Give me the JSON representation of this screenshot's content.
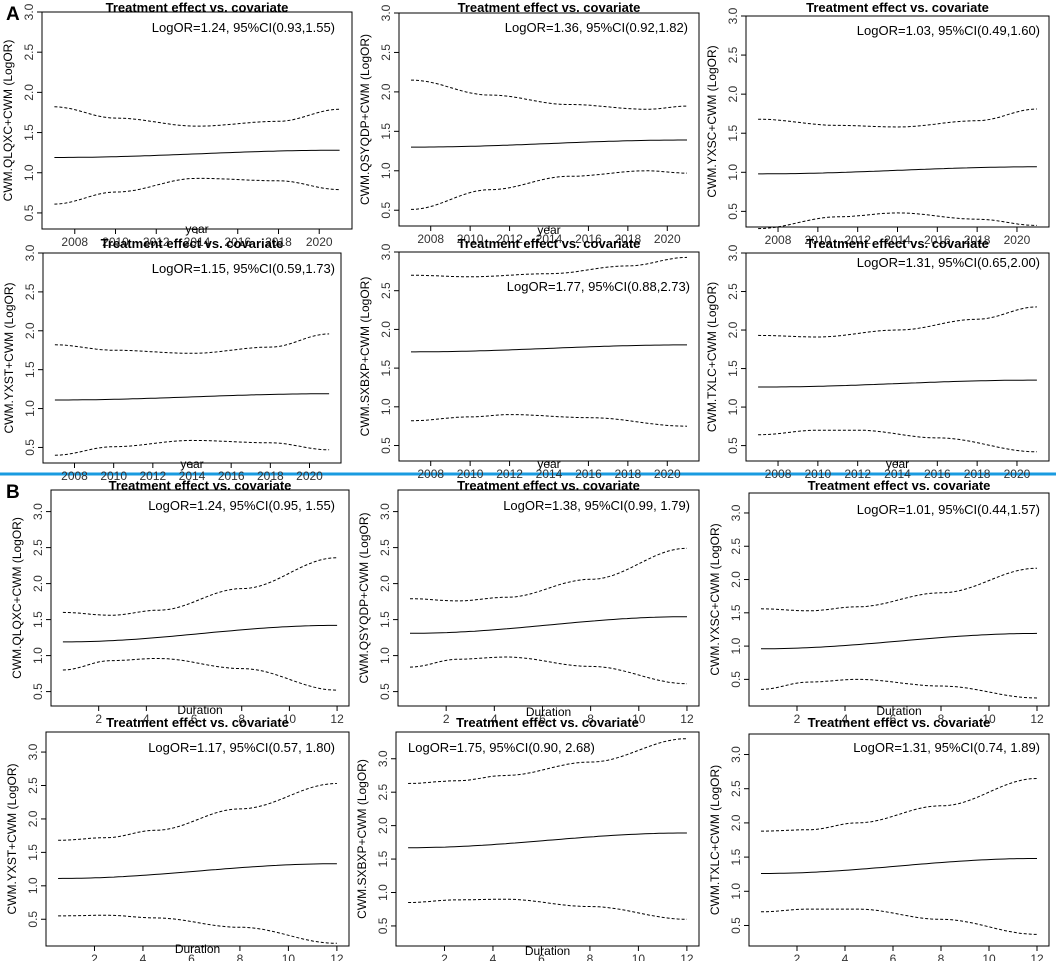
{
  "panel_labels": [
    "A",
    "B"
  ],
  "colors": {
    "separator": "#1a9be0",
    "line": "#000000",
    "frame": "#000000"
  },
  "chart_data": [
    {
      "panel": "A",
      "type": "line",
      "title": "Treatment effect vs. covariate",
      "xlabel": "year",
      "ylabel": "CWM.QLQXC+CWM (LogOR)",
      "annotation": "LogOR=1.24, 95%CI(0.93,1.55)",
      "xlim": [
        2007,
        2021
      ],
      "ylim": [
        0.3,
        3.0
      ],
      "xticks": [
        2008,
        2010,
        2012,
        2014,
        2016,
        2018,
        2020
      ],
      "yticks": [
        0.5,
        1.0,
        1.5,
        2.0,
        2.5,
        3.0
      ],
      "series": [
        {
          "name": "estimate",
          "x": [
            2007,
            2021
          ],
          "y": [
            1.19,
            1.28
          ]
        },
        {
          "name": "upper",
          "x": [
            2007,
            2010,
            2014,
            2018,
            2021
          ],
          "y": [
            1.82,
            1.68,
            1.58,
            1.64,
            1.79
          ]
        },
        {
          "name": "lower",
          "x": [
            2007,
            2010,
            2014,
            2018,
            2021
          ],
          "y": [
            0.61,
            0.76,
            0.93,
            0.9,
            0.79
          ]
        }
      ]
    },
    {
      "panel": "A",
      "type": "line",
      "title": "Treatment effect vs. covariate",
      "xlabel": "year",
      "ylabel": "CWM.QSYQDP+CWM (LogOR)",
      "annotation": "LogOR=1.36, 95%CI(0.92,1.82)",
      "xlim": [
        2007,
        2021
      ],
      "ylim": [
        0.3,
        3.0
      ],
      "xticks": [
        2008,
        2010,
        2012,
        2014,
        2016,
        2018,
        2020
      ],
      "yticks": [
        0.5,
        1.0,
        1.5,
        2.0,
        2.5,
        3.0
      ],
      "series": [
        {
          "name": "estimate",
          "x": [
            2007,
            2021
          ],
          "y": [
            1.3,
            1.39
          ]
        },
        {
          "name": "upper",
          "x": [
            2007,
            2011,
            2015,
            2019,
            2021
          ],
          "y": [
            2.15,
            1.96,
            1.84,
            1.78,
            1.82
          ]
        },
        {
          "name": "lower",
          "x": [
            2007,
            2011,
            2015,
            2019,
            2021
          ],
          "y": [
            0.51,
            0.76,
            0.93,
            1.0,
            0.97
          ]
        }
      ]
    },
    {
      "panel": "A",
      "type": "line",
      "title": "Treatment effect vs. covariate",
      "xlabel": "",
      "ylabel": "CWM.YXSC+CWM (LogOR)",
      "annotation": "LogOR=1.03, 95%CI(0.49,1.60)",
      "xlim": [
        2007,
        2021
      ],
      "ylim": [
        0.3,
        3.0
      ],
      "xticks": [
        2008,
        2010,
        2012,
        2014,
        2016,
        2018,
        2020
      ],
      "yticks": [
        0.5,
        1.0,
        1.5,
        2.0,
        2.5,
        3.0
      ],
      "series": [
        {
          "name": "estimate",
          "x": [
            2007,
            2021
          ],
          "y": [
            0.98,
            1.07
          ]
        },
        {
          "name": "upper",
          "x": [
            2007,
            2011,
            2014,
            2018,
            2021
          ],
          "y": [
            1.68,
            1.6,
            1.58,
            1.66,
            1.81
          ]
        },
        {
          "name": "lower",
          "x": [
            2007,
            2011,
            2014,
            2018,
            2021
          ],
          "y": [
            0.28,
            0.43,
            0.48,
            0.4,
            0.32
          ]
        }
      ]
    },
    {
      "panel": "A",
      "type": "line",
      "title": "Treatment effect vs. covariate",
      "xlabel": "year",
      "ylabel": "CWM.YXST+CWM (LogOR)",
      "annotation": "LogOR=1.15, 95%CI(0.59,1.73)",
      "xlim": [
        2007,
        2021
      ],
      "ylim": [
        0.3,
        3.0
      ],
      "xticks": [
        2008,
        2010,
        2012,
        2014,
        2016,
        2018,
        2020
      ],
      "yticks": [
        0.5,
        1.0,
        1.5,
        2.0,
        2.5,
        3.0
      ],
      "series": [
        {
          "name": "estimate",
          "x": [
            2007,
            2021
          ],
          "y": [
            1.11,
            1.19
          ]
        },
        {
          "name": "upper",
          "x": [
            2007,
            2010,
            2014,
            2018,
            2021
          ],
          "y": [
            1.82,
            1.75,
            1.71,
            1.79,
            1.96
          ]
        },
        {
          "name": "lower",
          "x": [
            2007,
            2010,
            2014,
            2018,
            2021
          ],
          "y": [
            0.4,
            0.51,
            0.59,
            0.56,
            0.47
          ]
        }
      ]
    },
    {
      "panel": "A",
      "type": "line",
      "title": "Treatment effect vs. covariate",
      "xlabel": "year",
      "ylabel": "CWM.SXBXP+CWM (LogOR)",
      "annotation": "LogOR=1.77, 95%CI(0.88,2.73)",
      "xlim": [
        2007,
        2021
      ],
      "ylim": [
        0.3,
        3.0
      ],
      "xticks": [
        2008,
        2010,
        2012,
        2014,
        2016,
        2018,
        2020
      ],
      "yticks": [
        0.5,
        1.0,
        1.5,
        2.0,
        2.5,
        3.0
      ],
      "series": [
        {
          "name": "estimate",
          "x": [
            2007,
            2021
          ],
          "y": [
            1.71,
            1.8
          ]
        },
        {
          "name": "upper",
          "x": [
            2007,
            2010,
            2014,
            2018,
            2021
          ],
          "y": [
            2.7,
            2.68,
            2.72,
            2.82,
            2.93
          ]
        },
        {
          "name": "lower",
          "x": [
            2007,
            2010,
            2012,
            2016,
            2021
          ],
          "y": [
            0.82,
            0.87,
            0.9,
            0.86,
            0.75
          ]
        }
      ]
    },
    {
      "panel": "A",
      "type": "line",
      "title": "Treatment effect vs. covariate",
      "xlabel": "year",
      "ylabel": "CWM.TXLC+CWM (LogOR)",
      "annotation": "LogOR=1.31, 95%CI(0.65,2.00)",
      "xlim": [
        2007,
        2021
      ],
      "ylim": [
        0.3,
        3.0
      ],
      "xticks": [
        2008,
        2010,
        2012,
        2014,
        2016,
        2018,
        2020
      ],
      "yticks": [
        0.5,
        1.0,
        1.5,
        2.0,
        2.5,
        3.0
      ],
      "series": [
        {
          "name": "estimate",
          "x": [
            2007,
            2021
          ],
          "y": [
            1.26,
            1.35
          ]
        },
        {
          "name": "upper",
          "x": [
            2007,
            2010,
            2014,
            2018,
            2021
          ],
          "y": [
            1.93,
            1.91,
            2.0,
            2.14,
            2.3
          ]
        },
        {
          "name": "lower",
          "x": [
            2007,
            2010,
            2012,
            2016,
            2021
          ],
          "y": [
            0.64,
            0.7,
            0.7,
            0.6,
            0.42
          ]
        }
      ]
    },
    {
      "panel": "B",
      "type": "line",
      "title": "Treatment effect vs. covariate",
      "xlabel": "Duration",
      "ylabel": "CWM.QLQXC+CWM (LogOR)",
      "annotation": "LogOR=1.24, 95%CI(0.95, 1.55)",
      "xlim": [
        0.5,
        12
      ],
      "ylim": [
        0.3,
        3.3
      ],
      "xticks": [
        2,
        4,
        6,
        8,
        10,
        12
      ],
      "yticks": [
        0.5,
        1.0,
        1.5,
        2.0,
        2.5,
        3.0
      ],
      "series": [
        {
          "name": "estimate",
          "x": [
            0.5,
            12
          ],
          "y": [
            1.19,
            1.42
          ]
        },
        {
          "name": "upper",
          "x": [
            0.5,
            2.5,
            4.5,
            8,
            12
          ],
          "y": [
            1.6,
            1.56,
            1.63,
            1.93,
            2.36
          ]
        },
        {
          "name": "lower",
          "x": [
            0.5,
            2.5,
            4.5,
            8,
            12
          ],
          "y": [
            0.8,
            0.93,
            0.96,
            0.82,
            0.52
          ]
        }
      ]
    },
    {
      "panel": "B",
      "type": "line",
      "title": "Treatment effect vs. covariate",
      "xlabel": "Duration",
      "ylabel": "CWM.QSYQDP+CWM (LogOR)",
      "annotation": "LogOR=1.38, 95%CI(0.99, 1.79)",
      "xlim": [
        0.5,
        12
      ],
      "ylim": [
        0.3,
        3.3
      ],
      "xticks": [
        2,
        4,
        6,
        8,
        10,
        12
      ],
      "yticks": [
        0.5,
        1.0,
        1.5,
        2.0,
        2.5,
        3.0
      ],
      "series": [
        {
          "name": "estimate",
          "x": [
            0.5,
            12
          ],
          "y": [
            1.31,
            1.54
          ]
        },
        {
          "name": "upper",
          "x": [
            0.5,
            2.5,
            4.5,
            8,
            12
          ],
          "y": [
            1.79,
            1.76,
            1.81,
            2.06,
            2.49
          ]
        },
        {
          "name": "lower",
          "x": [
            0.5,
            2.5,
            4.5,
            8,
            12
          ],
          "y": [
            0.84,
            0.95,
            0.98,
            0.85,
            0.61
          ]
        }
      ]
    },
    {
      "panel": "B",
      "type": "line",
      "title": "Treatment effect vs. covariate",
      "xlabel": "Duration",
      "ylabel": "CWM.YXSC+CWM (LogOR)",
      "annotation": "LogOR=1.01, 95%CI(0.44,1.57)",
      "xlim": [
        0.5,
        12
      ],
      "ylim": [
        0.1,
        3.3
      ],
      "xticks": [
        2,
        4,
        6,
        8,
        10,
        12
      ],
      "yticks": [
        0.5,
        1.0,
        1.5,
        2.0,
        2.5,
        3.0
      ],
      "series": [
        {
          "name": "estimate",
          "x": [
            0.5,
            12
          ],
          "y": [
            0.96,
            1.19
          ]
        },
        {
          "name": "upper",
          "x": [
            0.5,
            2.5,
            4.5,
            8,
            12
          ],
          "y": [
            1.56,
            1.53,
            1.59,
            1.8,
            2.17
          ]
        },
        {
          "name": "lower",
          "x": [
            0.5,
            2.5,
            4.5,
            8,
            12
          ],
          "y": [
            0.35,
            0.46,
            0.5,
            0.4,
            0.22
          ]
        }
      ]
    },
    {
      "panel": "B",
      "type": "line",
      "title": "Treatment effect vs. covariate",
      "xlabel": "Duration",
      "ylabel": "CWM.YXST+CWM (LogOR)",
      "annotation": "LogOR=1.17, 95%CI(0.57, 1.80)",
      "xlim": [
        0.5,
        12
      ],
      "ylim": [
        0.1,
        3.3
      ],
      "xticks": [
        2,
        4,
        6,
        8,
        10,
        12
      ],
      "yticks": [
        0.5,
        1.0,
        1.5,
        2.0,
        2.5,
        3.0
      ],
      "series": [
        {
          "name": "estimate",
          "x": [
            0.5,
            12
          ],
          "y": [
            1.11,
            1.33
          ]
        },
        {
          "name": "upper",
          "x": [
            0.5,
            2.5,
            4.5,
            8,
            12
          ],
          "y": [
            1.68,
            1.72,
            1.83,
            2.15,
            2.53
          ]
        },
        {
          "name": "lower",
          "x": [
            0.5,
            2.5,
            4.5,
            8,
            12
          ],
          "y": [
            0.55,
            0.56,
            0.52,
            0.38,
            0.14
          ]
        }
      ]
    },
    {
      "panel": "B",
      "type": "line",
      "title": "Treatment effect vs. covariate",
      "xlabel": "Duration",
      "ylabel": "CWM.SXBXP+CWM (LogOR)",
      "annotation": "LogOR=1.75, 95%CI(0.90, 2.68)",
      "xlim": [
        0.5,
        12
      ],
      "ylim": [
        0.2,
        3.4
      ],
      "xticks": [
        2,
        4,
        6,
        8,
        10,
        12
      ],
      "yticks": [
        0.5,
        1.0,
        1.5,
        2.0,
        2.5,
        3.0
      ],
      "series": [
        {
          "name": "estimate",
          "x": [
            0.5,
            12
          ],
          "y": [
            1.67,
            1.89
          ]
        },
        {
          "name": "upper",
          "x": [
            0.5,
            2.5,
            4.5,
            8,
            12
          ],
          "y": [
            2.63,
            2.67,
            2.75,
            2.95,
            3.3
          ]
        },
        {
          "name": "lower",
          "x": [
            0.5,
            2.5,
            4.5,
            8,
            12
          ],
          "y": [
            0.85,
            0.89,
            0.9,
            0.79,
            0.6
          ]
        }
      ]
    },
    {
      "panel": "B",
      "type": "line",
      "title": "Treatment effect vs. covariate",
      "xlabel": "",
      "ylabel": "CWM.TXLC+CWM (LogOR)",
      "annotation": "LogOR=1.31, 95%CI(0.74, 1.89)",
      "xlim": [
        0.5,
        12
      ],
      "ylim": [
        0.2,
        3.3
      ],
      "xticks": [
        2,
        4,
        6,
        8,
        10,
        12
      ],
      "yticks": [
        0.5,
        1.0,
        1.5,
        2.0,
        2.5,
        3.0
      ],
      "series": [
        {
          "name": "estimate",
          "x": [
            0.5,
            12
          ],
          "y": [
            1.26,
            1.48
          ]
        },
        {
          "name": "upper",
          "x": [
            0.5,
            2.5,
            4.5,
            8,
            12
          ],
          "y": [
            1.88,
            1.9,
            2.0,
            2.25,
            2.65
          ]
        },
        {
          "name": "lower",
          "x": [
            0.5,
            2.5,
            4.5,
            8,
            12
          ],
          "y": [
            0.7,
            0.74,
            0.74,
            0.59,
            0.37
          ]
        }
      ]
    }
  ]
}
